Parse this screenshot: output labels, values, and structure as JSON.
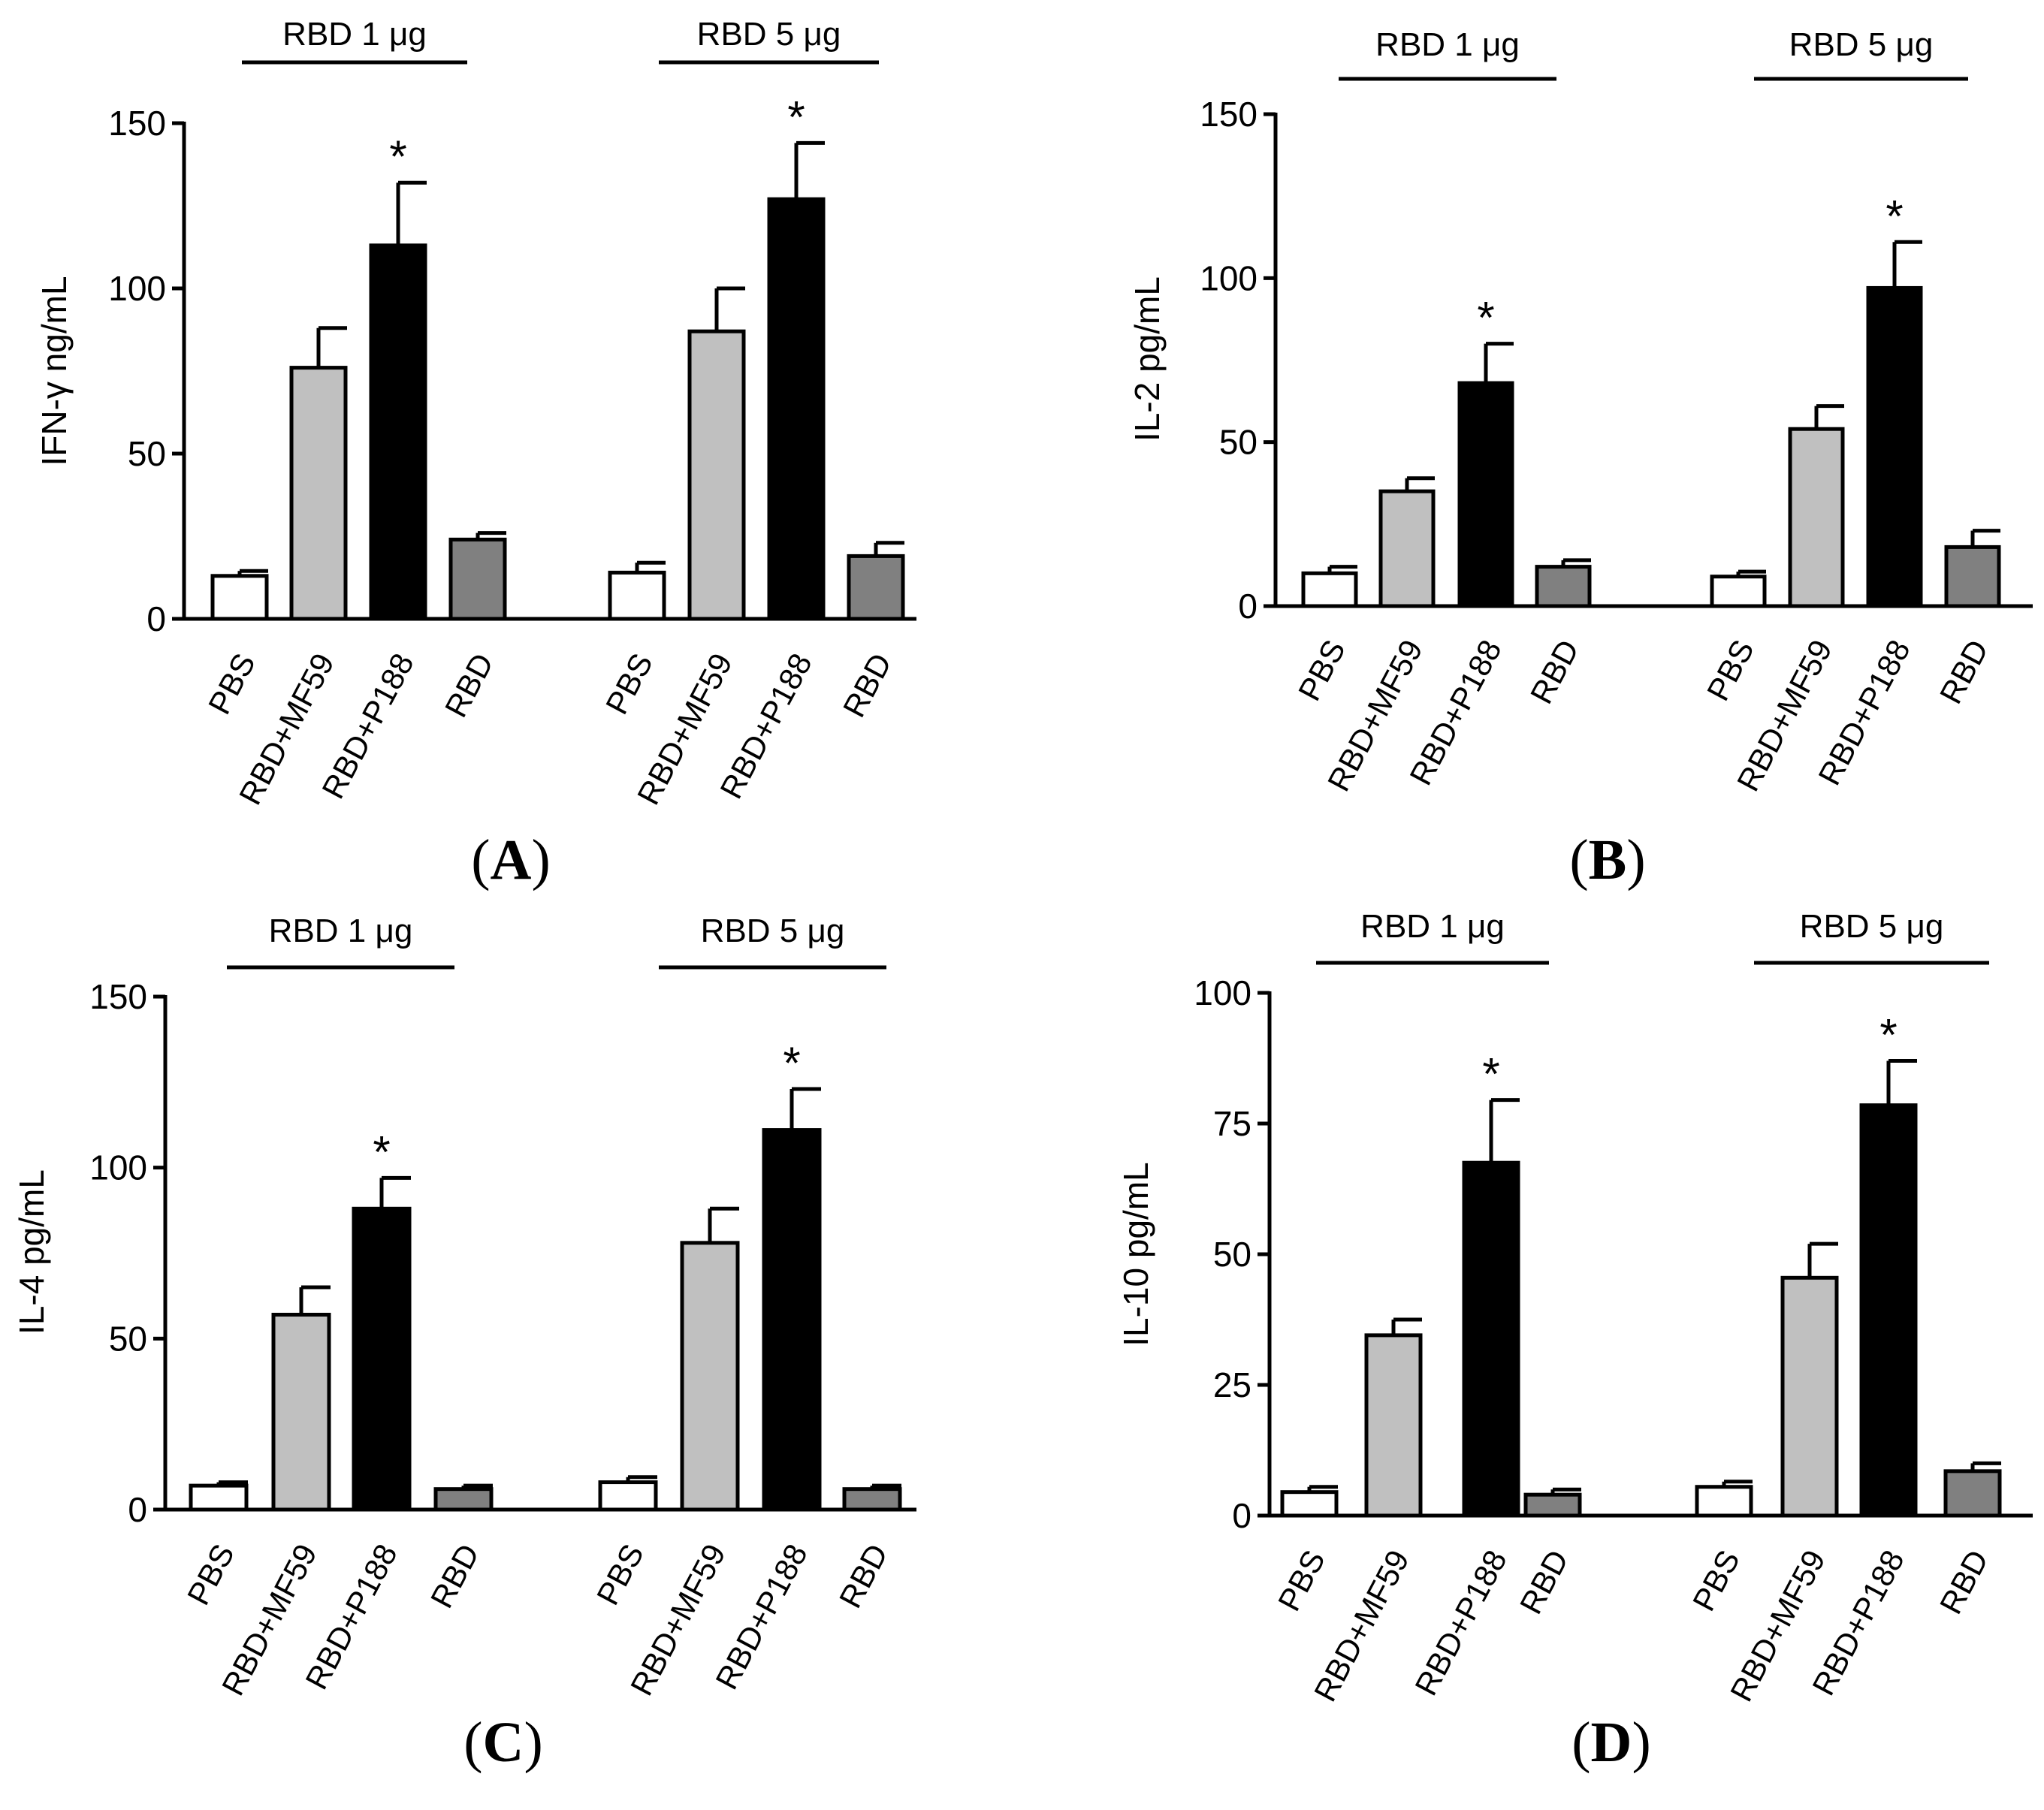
{
  "colors": {
    "PBS": "#ffffff",
    "RBD+MF59": "#c0c0c0",
    "RBD+P188": "#000000",
    "RBD": "#808080",
    "stroke": "#000000"
  },
  "chart_data": [
    {
      "type": "bar",
      "panel": "A",
      "title": "",
      "xlabel": "",
      "ylabel": "IFN-γ ng/mL",
      "ylim": [
        0,
        150
      ],
      "yticks": [
        0,
        50,
        100,
        150
      ],
      "groups": [
        {
          "label": "RBD 1 μg",
          "categories": [
            "PBS",
            "RBD+MF59",
            "RBD+P188",
            "RBD"
          ],
          "values": [
            13,
            76,
            113,
            24
          ],
          "errors": [
            1.5,
            12,
            19,
            2
          ],
          "significance": [
            "",
            "",
            "*",
            ""
          ]
        },
        {
          "label": "RBD 5 μg",
          "categories": [
            "PBS",
            "RBD+MF59",
            "RBD+P188",
            "RBD"
          ],
          "values": [
            14,
            87,
            127,
            19
          ],
          "errors": [
            3,
            13,
            17,
            4
          ],
          "significance": [
            "",
            "",
            "*",
            ""
          ]
        }
      ],
      "grid": false,
      "legend": "none"
    },
    {
      "type": "bar",
      "panel": "B",
      "title": "",
      "xlabel": "",
      "ylabel": "IL-2 pg/mL",
      "ylim": [
        0,
        150
      ],
      "yticks": [
        0,
        50,
        100,
        150
      ],
      "groups": [
        {
          "label": "RBD 1 μg",
          "categories": [
            "PBS",
            "RBD+MF59",
            "RBD+P188",
            "RBD"
          ],
          "values": [
            10,
            35,
            68,
            12
          ],
          "errors": [
            2,
            4,
            12,
            2
          ],
          "significance": [
            "",
            "",
            "*",
            ""
          ]
        },
        {
          "label": "RBD 5 μg",
          "categories": [
            "PBS",
            "RBD+MF59",
            "RBD+P188",
            "RBD"
          ],
          "values": [
            9,
            54,
            97,
            18
          ],
          "errors": [
            1.5,
            7,
            14,
            5
          ],
          "significance": [
            "",
            "",
            "*",
            ""
          ]
        }
      ],
      "grid": false,
      "legend": "none"
    },
    {
      "type": "bar",
      "panel": "C",
      "title": "",
      "xlabel": "",
      "ylabel": "IL-4 pg/mL",
      "ylim": [
        0,
        150
      ],
      "yticks": [
        0,
        50,
        100,
        150
      ],
      "groups": [
        {
          "label": "RBD 1 μg",
          "categories": [
            "PBS",
            "RBD+MF59",
            "RBD+P188",
            "RBD"
          ],
          "values": [
            7,
            57,
            88,
            6
          ],
          "errors": [
            1,
            8,
            9,
            1
          ],
          "significance": [
            "",
            "",
            "*",
            ""
          ]
        },
        {
          "label": "RBD 5 μg",
          "categories": [
            "PBS",
            "RBD+MF59",
            "RBD+P188",
            "RBD"
          ],
          "values": [
            8,
            78,
            111,
            6
          ],
          "errors": [
            1.5,
            10,
            12,
            1
          ],
          "significance": [
            "",
            "",
            "*",
            ""
          ]
        }
      ],
      "grid": false,
      "legend": "none"
    },
    {
      "type": "bar",
      "panel": "D",
      "title": "",
      "xlabel": "",
      "ylabel": "IL-10 pg/mL",
      "ylim": [
        0,
        100
      ],
      "yticks": [
        0,
        25,
        50,
        75,
        100
      ],
      "groups": [
        {
          "label": "RBD 1 μg",
          "categories": [
            "PBS",
            "RBD+MF59",
            "RBD+P188",
            "RBD"
          ],
          "values": [
            4.5,
            34.5,
            67.5,
            4
          ],
          "errors": [
            1,
            3,
            12,
            1
          ],
          "significance": [
            "",
            "",
            "*",
            ""
          ]
        },
        {
          "label": "RBD 5 μg",
          "categories": [
            "PBS",
            "RBD+MF59",
            "RBD+P188",
            "RBD"
          ],
          "values": [
            5.5,
            45.5,
            78.5,
            8.5
          ],
          "errors": [
            1,
            6.5,
            8.5,
            1.5
          ],
          "significance": [
            "",
            "",
            "*",
            ""
          ]
        }
      ],
      "grid": false,
      "legend": "none"
    }
  ]
}
